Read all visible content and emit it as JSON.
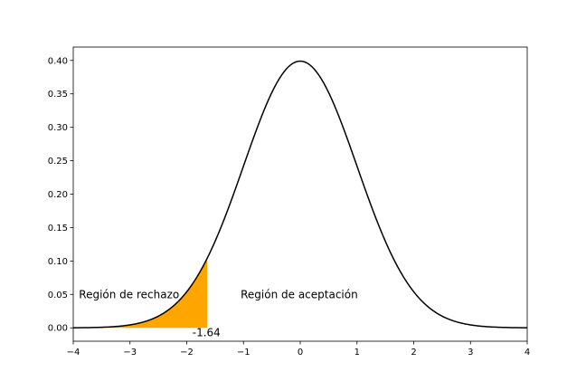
{
  "chart_data": {
    "type": "line",
    "title": "",
    "xlabel": "",
    "ylabel": "",
    "xlim": [
      -4,
      4
    ],
    "ylim": [
      -0.02,
      0.42
    ],
    "grid": false,
    "legend": "none",
    "x_ticks": [
      "−4",
      "−3",
      "−2",
      "−1",
      "0",
      "1",
      "2",
      "3",
      "4"
    ],
    "y_ticks": [
      "0.00",
      "0.05",
      "0.10",
      "0.15",
      "0.20",
      "0.25",
      "0.30",
      "0.35",
      "0.40"
    ],
    "series": [
      {
        "distribution": "standard normal",
        "mean": 0,
        "sd": 1,
        "x_range": [
          -4,
          4
        ],
        "color": "#000000"
      }
    ],
    "shaded_region": {
      "x_from": -4,
      "x_to": -1.64,
      "color": "#ffa500"
    },
    "annotations": [
      {
        "text": "Región de rechazo",
        "x": -3.9,
        "y": 0.05
      },
      {
        "text": "Región de aceptación",
        "x": -1.05,
        "y": 0.05
      },
      {
        "text": "-1.64",
        "x": -1.9,
        "y": -0.007
      }
    ]
  }
}
